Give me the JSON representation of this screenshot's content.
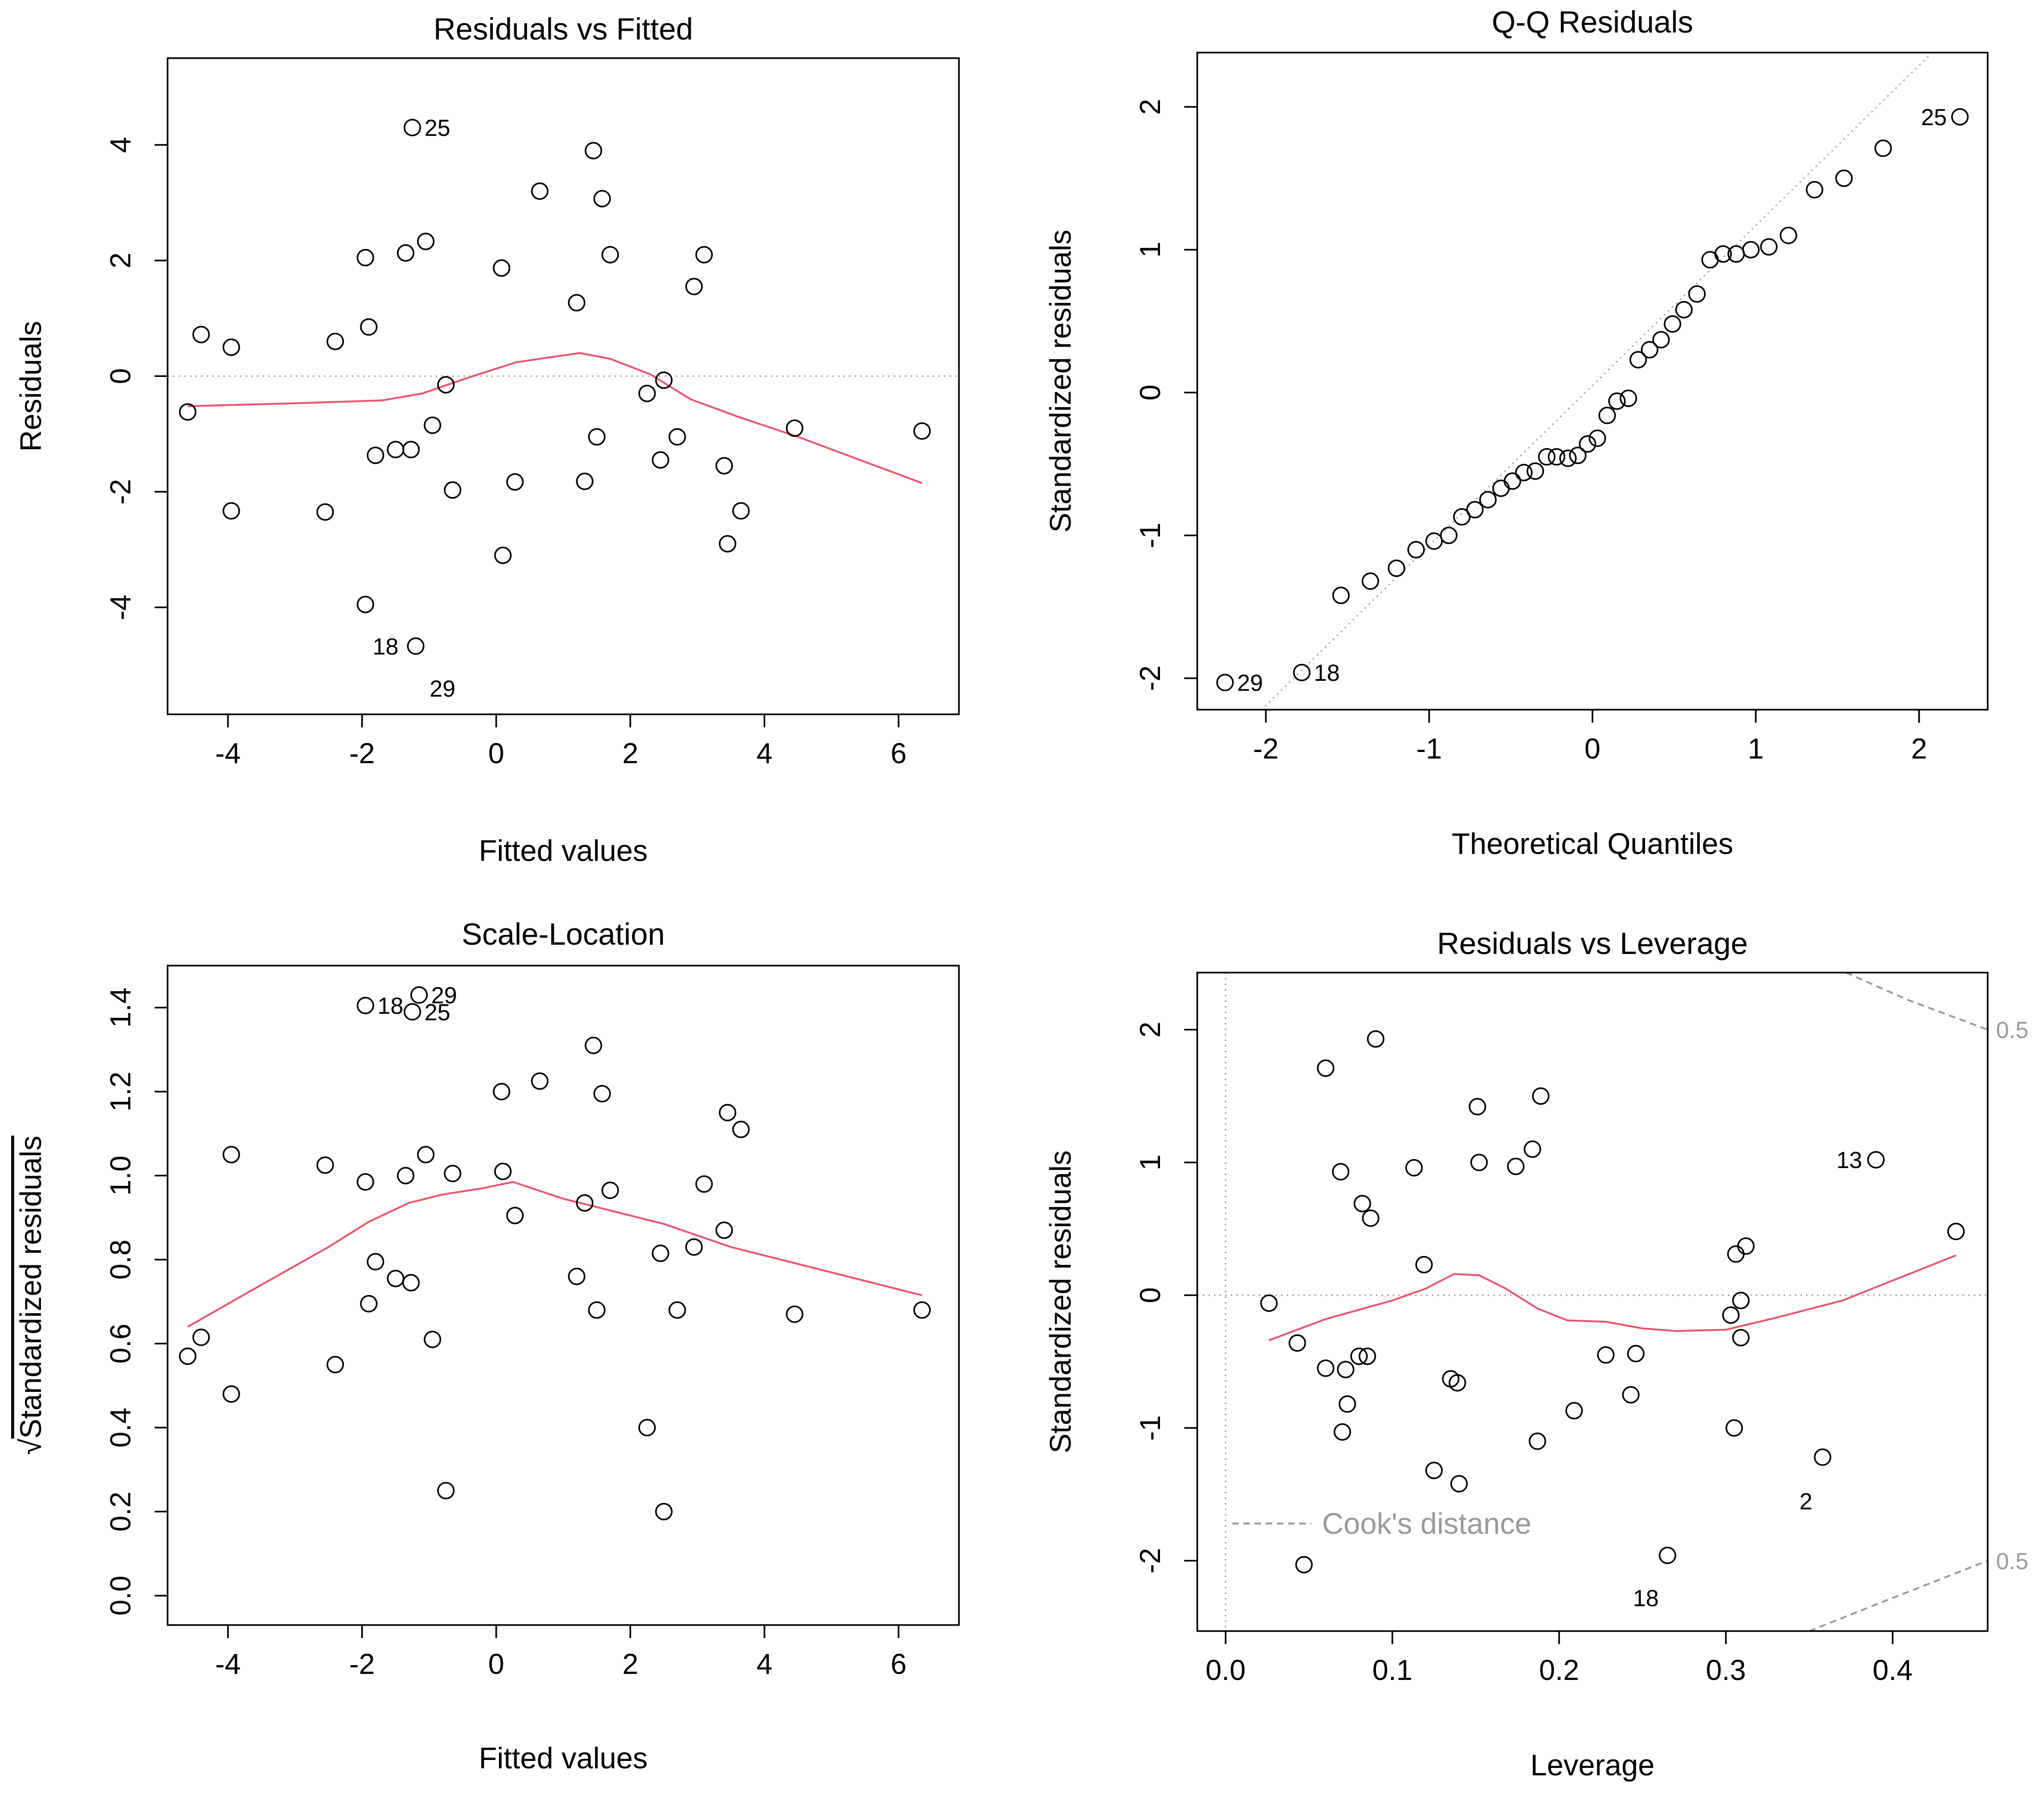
{
  "chart_data": [
    {
      "type": "scatter",
      "title": "Residuals vs Fitted",
      "xlabel": "Fitted values",
      "ylabel": "Residuals",
      "xlim": [
        -4.9,
        6.9
      ],
      "ylim": [
        -5.85,
        5.5
      ],
      "xticks": [
        -4,
        -2,
        0,
        2,
        4,
        6
      ],
      "yticks": [
        -4,
        -2,
        0,
        2,
        4
      ],
      "reference_line": {
        "y": 0,
        "style": "dotted"
      },
      "points": [
        {
          "x": -4.6,
          "y": -0.62
        },
        {
          "x": -4.4,
          "y": 0.72
        },
        {
          "x": -3.95,
          "y": 0.5
        },
        {
          "x": -3.95,
          "y": -2.33
        },
        {
          "x": -2.55,
          "y": -2.35
        },
        {
          "x": -2.4,
          "y": 0.6
        },
        {
          "x": -1.95,
          "y": -3.95
        },
        {
          "x": -1.95,
          "y": 2.05
        },
        {
          "x": -1.9,
          "y": 0.85
        },
        {
          "x": -1.8,
          "y": -1.37
        },
        {
          "x": -1.5,
          "y": -1.27
        },
        {
          "x": -1.35,
          "y": 2.13
        },
        {
          "x": -1.27,
          "y": -1.27
        },
        {
          "x": -1.25,
          "y": 4.3,
          "label": "25"
        },
        {
          "x": -1.2,
          "y": -4.67
        },
        {
          "x": -1.05,
          "y": 2.33
        },
        {
          "x": -0.95,
          "y": -0.85
        },
        {
          "x": -0.75,
          "y": -0.15
        },
        {
          "x": -0.65,
          "y": -1.97
        },
        {
          "x": 0.08,
          "y": 1.87
        },
        {
          "x": 0.1,
          "y": -3.1
        },
        {
          "x": 0.28,
          "y": -1.83
        },
        {
          "x": 0.65,
          "y": 3.2
        },
        {
          "x": 1.2,
          "y": 1.27
        },
        {
          "x": 1.32,
          "y": -1.82
        },
        {
          "x": 1.45,
          "y": 3.9
        },
        {
          "x": 1.5,
          "y": -1.05
        },
        {
          "x": 1.58,
          "y": 3.07
        },
        {
          "x": 1.7,
          "y": 2.1
        },
        {
          "x": 2.25,
          "y": -0.3
        },
        {
          "x": 2.45,
          "y": -1.45
        },
        {
          "x": 2.5,
          "y": -0.07
        },
        {
          "x": 2.7,
          "y": -1.05
        },
        {
          "x": 2.95,
          "y": 1.55
        },
        {
          "x": 3.1,
          "y": 2.1
        },
        {
          "x": 3.4,
          "y": -1.55
        },
        {
          "x": 3.45,
          "y": -2.9
        },
        {
          "x": 3.65,
          "y": -2.33
        },
        {
          "x": 4.45,
          "y": -0.9
        },
        {
          "x": 6.35,
          "y": -0.95
        }
      ],
      "extra_labels": [
        {
          "text": "18",
          "x": -1.65,
          "y": -4.67
        },
        {
          "text": "29",
          "x": -0.8,
          "y": -5.4
        }
      ],
      "smooth_line": [
        {
          "x": -4.6,
          "y": -0.52
        },
        {
          "x": -3,
          "y": -0.47
        },
        {
          "x": -1.7,
          "y": -0.42
        },
        {
          "x": -1.1,
          "y": -0.3
        },
        {
          "x": -0.4,
          "y": -0.02
        },
        {
          "x": 0.3,
          "y": 0.24
        },
        {
          "x": 1.25,
          "y": 0.4
        },
        {
          "x": 1.7,
          "y": 0.3
        },
        {
          "x": 2.3,
          "y": 0.03
        },
        {
          "x": 2.9,
          "y": -0.4
        },
        {
          "x": 3.6,
          "y": -0.7
        },
        {
          "x": 4.5,
          "y": -1.05
        },
        {
          "x": 6.35,
          "y": -1.85
        }
      ],
      "colors": {
        "points": "#000000",
        "smooth": "#e8566b",
        "reference": "#9a9a9a"
      }
    },
    {
      "type": "scatter",
      "title": "Q-Q Residuals",
      "xlabel": "Theoretical Quantiles",
      "ylabel": "Standardized residuals",
      "xlim": [
        -2.42,
        2.42
      ],
      "ylim": [
        -2.22,
        2.38
      ],
      "xticks": [
        -2,
        -1,
        0,
        1,
        2
      ],
      "yticks": [
        -2,
        -1,
        0,
        1,
        2
      ],
      "reference_line": {
        "type": "qqline",
        "intercept": 0.05,
        "slope": 1.12,
        "style": "dotted"
      },
      "points": [
        {
          "x": -2.25,
          "y": -2.03,
          "label": "29"
        },
        {
          "x": -1.78,
          "y": -1.96,
          "label": "18"
        },
        {
          "x": -1.54,
          "y": -1.42
        },
        {
          "x": -1.36,
          "y": -1.32
        },
        {
          "x": -1.2,
          "y": -1.23
        },
        {
          "x": -1.08,
          "y": -1.1
        },
        {
          "x": -0.97,
          "y": -1.04
        },
        {
          "x": -0.88,
          "y": -1.0
        },
        {
          "x": -0.8,
          "y": -0.87
        },
        {
          "x": -0.72,
          "y": -0.82
        },
        {
          "x": -0.64,
          "y": -0.75
        },
        {
          "x": -0.56,
          "y": -0.67
        },
        {
          "x": -0.49,
          "y": -0.62
        },
        {
          "x": -0.42,
          "y": -0.56
        },
        {
          "x": -0.35,
          "y": -0.55
        },
        {
          "x": -0.28,
          "y": -0.45
        },
        {
          "x": -0.22,
          "y": -0.45
        },
        {
          "x": -0.15,
          "y": -0.46
        },
        {
          "x": -0.09,
          "y": -0.44
        },
        {
          "x": -0.03,
          "y": -0.36
        },
        {
          "x": 0.03,
          "y": -0.32
        },
        {
          "x": 0.09,
          "y": -0.16
        },
        {
          "x": 0.15,
          "y": -0.06
        },
        {
          "x": 0.22,
          "y": -0.04
        },
        {
          "x": 0.28,
          "y": 0.23
        },
        {
          "x": 0.35,
          "y": 0.3
        },
        {
          "x": 0.42,
          "y": 0.37
        },
        {
          "x": 0.49,
          "y": 0.48
        },
        {
          "x": 0.56,
          "y": 0.58
        },
        {
          "x": 0.64,
          "y": 0.69
        },
        {
          "x": 0.72,
          "y": 0.93
        },
        {
          "x": 0.8,
          "y": 0.97
        },
        {
          "x": 0.88,
          "y": 0.97
        },
        {
          "x": 0.97,
          "y": 1.0
        },
        {
          "x": 1.08,
          "y": 1.02
        },
        {
          "x": 1.2,
          "y": 1.1
        },
        {
          "x": 1.36,
          "y": 1.42
        },
        {
          "x": 1.54,
          "y": 1.5
        },
        {
          "x": 1.78,
          "y": 1.71
        },
        {
          "x": 2.25,
          "y": 1.93,
          "label": "25"
        }
      ],
      "colors": {
        "points": "#000000",
        "reference": "#9a9a9a"
      }
    },
    {
      "type": "scatter",
      "title": "Scale-Location",
      "xlabel": "Fitted values",
      "ylabel": "Standardized residuals",
      "ylabel_prefix": "√",
      "xlim": [
        -4.9,
        6.9
      ],
      "ylim": [
        -0.07,
        1.5
      ],
      "xticks": [
        -4,
        -2,
        0,
        2,
        4,
        6
      ],
      "yticks": [
        "0.0",
        "0.2",
        "0.4",
        "0.6",
        "0.8",
        "1.0",
        "1.2",
        "1.4"
      ],
      "points": [
        {
          "x": -4.6,
          "y": 0.57
        },
        {
          "x": -4.4,
          "y": 0.615
        },
        {
          "x": -3.95,
          "y": 1.05
        },
        {
          "x": -3.95,
          "y": 0.48
        },
        {
          "x": -2.55,
          "y": 1.025
        },
        {
          "x": -2.4,
          "y": 0.55
        },
        {
          "x": -1.95,
          "y": 1.405,
          "label": "18"
        },
        {
          "x": -1.95,
          "y": 0.985
        },
        {
          "x": -1.9,
          "y": 0.695
        },
        {
          "x": -1.8,
          "y": 0.795
        },
        {
          "x": -1.5,
          "y": 0.755
        },
        {
          "x": -1.35,
          "y": 1.0
        },
        {
          "x": -1.27,
          "y": 0.745
        },
        {
          "x": -1.25,
          "y": 1.39,
          "label": "25"
        },
        {
          "x": -1.15,
          "y": 1.43,
          "label": "29"
        },
        {
          "x": -1.05,
          "y": 1.05
        },
        {
          "x": -0.95,
          "y": 0.61
        },
        {
          "x": -0.75,
          "y": 0.25
        },
        {
          "x": -0.65,
          "y": 1.005
        },
        {
          "x": 0.08,
          "y": 1.2
        },
        {
          "x": 0.1,
          "y": 1.01
        },
        {
          "x": 0.28,
          "y": 0.905
        },
        {
          "x": 0.65,
          "y": 1.225
        },
        {
          "x": 1.2,
          "y": 0.76
        },
        {
          "x": 1.32,
          "y": 0.935
        },
        {
          "x": 1.45,
          "y": 1.31
        },
        {
          "x": 1.5,
          "y": 0.68
        },
        {
          "x": 1.58,
          "y": 1.195
        },
        {
          "x": 1.7,
          "y": 0.965
        },
        {
          "x": 2.25,
          "y": 0.4
        },
        {
          "x": 2.45,
          "y": 0.815
        },
        {
          "x": 2.5,
          "y": 0.2
        },
        {
          "x": 2.7,
          "y": 0.68
        },
        {
          "x": 2.95,
          "y": 0.83
        },
        {
          "x": 3.1,
          "y": 0.98
        },
        {
          "x": 3.4,
          "y": 0.87
        },
        {
          "x": 3.45,
          "y": 1.15
        },
        {
          "x": 3.65,
          "y": 1.11
        },
        {
          "x": 4.45,
          "y": 0.67
        },
        {
          "x": 6.35,
          "y": 0.68
        }
      ],
      "smooth_line": [
        {
          "x": -4.6,
          "y": 0.64
        },
        {
          "x": -3.5,
          "y": 0.74
        },
        {
          "x": -2.5,
          "y": 0.83
        },
        {
          "x": -1.9,
          "y": 0.89
        },
        {
          "x": -1.3,
          "y": 0.935
        },
        {
          "x": -0.8,
          "y": 0.955
        },
        {
          "x": -0.2,
          "y": 0.97
        },
        {
          "x": 0.25,
          "y": 0.985
        },
        {
          "x": 1,
          "y": 0.945
        },
        {
          "x": 2.5,
          "y": 0.885
        },
        {
          "x": 3.5,
          "y": 0.83
        },
        {
          "x": 6.35,
          "y": 0.715
        }
      ],
      "colors": {
        "points": "#000000",
        "smooth": "#e8566b"
      }
    },
    {
      "type": "scatter",
      "title": "Residuals vs Leverage",
      "xlabel": "Leverage",
      "ylabel": "Standardized residuals",
      "xlim": [
        -0.017,
        0.457
      ],
      "ylim": [
        -2.53,
        2.43
      ],
      "xticks": [
        "0.0",
        "0.1",
        "0.2",
        "0.3",
        "0.4"
      ],
      "yticks": [
        -2,
        -1,
        0,
        1,
        2
      ],
      "reference_lines": [
        {
          "y": 0,
          "style": "dotted"
        },
        {
          "x": 0,
          "style": "dotted"
        }
      ],
      "points": [
        {
          "x": 0.026,
          "y": -0.06
        },
        {
          "x": 0.043,
          "y": -0.36
        },
        {
          "x": 0.047,
          "y": -2.03
        },
        {
          "x": 0.06,
          "y": 1.71
        },
        {
          "x": 0.06,
          "y": -0.55
        },
        {
          "x": 0.069,
          "y": 0.93
        },
        {
          "x": 0.07,
          "y": -1.03
        },
        {
          "x": 0.072,
          "y": -0.56
        },
        {
          "x": 0.073,
          "y": -0.82
        },
        {
          "x": 0.08,
          "y": -0.46
        },
        {
          "x": 0.082,
          "y": 0.69
        },
        {
          "x": 0.085,
          "y": -0.46
        },
        {
          "x": 0.087,
          "y": 0.58
        },
        {
          "x": 0.09,
          "y": 1.93
        },
        {
          "x": 0.113,
          "y": 0.96
        },
        {
          "x": 0.119,
          "y": 0.23
        },
        {
          "x": 0.125,
          "y": -1.32
        },
        {
          "x": 0.135,
          "y": -0.63
        },
        {
          "x": 0.139,
          "y": -0.66
        },
        {
          "x": 0.14,
          "y": -1.42
        },
        {
          "x": 0.151,
          "y": 1.42
        },
        {
          "x": 0.152,
          "y": 1.0
        },
        {
          "x": 0.174,
          "y": 0.97
        },
        {
          "x": 0.184,
          "y": 1.1
        },
        {
          "x": 0.187,
          "y": -1.1
        },
        {
          "x": 0.189,
          "y": 1.5
        },
        {
          "x": 0.209,
          "y": -0.87
        },
        {
          "x": 0.228,
          "y": -0.45
        },
        {
          "x": 0.243,
          "y": -0.75
        },
        {
          "x": 0.246,
          "y": -0.44
        },
        {
          "x": 0.265,
          "y": -1.96
        },
        {
          "x": 0.303,
          "y": -0.15
        },
        {
          "x": 0.305,
          "y": -1.0
        },
        {
          "x": 0.306,
          "y": 0.31
        },
        {
          "x": 0.309,
          "y": -0.04
        },
        {
          "x": 0.309,
          "y": -0.32
        },
        {
          "x": 0.312,
          "y": 0.37
        },
        {
          "x": 0.358,
          "y": -1.22
        },
        {
          "x": 0.39,
          "y": 1.02
        },
        {
          "x": 0.438,
          "y": 0.48
        }
      ],
      "extra_labels": [
        {
          "text": "13",
          "x": 0.374,
          "y": 1.02
        },
        {
          "text": "2",
          "x": 0.348,
          "y": -1.55
        },
        {
          "text": "18",
          "x": 0.252,
          "y": -2.28
        }
      ],
      "smooth_line": [
        {
          "x": 0.026,
          "y": -0.34
        },
        {
          "x": 0.06,
          "y": -0.18
        },
        {
          "x": 0.1,
          "y": -0.04
        },
        {
          "x": 0.12,
          "y": 0.05
        },
        {
          "x": 0.137,
          "y": 0.16
        },
        {
          "x": 0.152,
          "y": 0.15
        },
        {
          "x": 0.168,
          "y": 0.05
        },
        {
          "x": 0.187,
          "y": -0.1
        },
        {
          "x": 0.205,
          "y": -0.19
        },
        {
          "x": 0.228,
          "y": -0.2
        },
        {
          "x": 0.25,
          "y": -0.25
        },
        {
          "x": 0.27,
          "y": -0.27
        },
        {
          "x": 0.3,
          "y": -0.26
        },
        {
          "x": 0.33,
          "y": -0.17
        },
        {
          "x": 0.37,
          "y": -0.04
        },
        {
          "x": 0.438,
          "y": 0.3
        }
      ],
      "cook_distance": {
        "level_label": "0.5",
        "upper": [
          {
            "x": 0.372,
            "y": 2.43
          },
          {
            "x": 0.41,
            "y": 2.22
          },
          {
            "x": 0.457,
            "y": 2.0
          }
        ],
        "lower": [
          {
            "x": 0.35,
            "y": -2.53
          },
          {
            "x": 0.39,
            "y": -2.33
          },
          {
            "x": 0.457,
            "y": -2.0
          }
        ]
      },
      "legend": {
        "label": "Cook's distance",
        "position": "bottom-left"
      },
      "colors": {
        "points": "#000000",
        "smooth": "#e8566b",
        "reference": "#9a9a9a",
        "cook": "#9a9a9a"
      }
    }
  ]
}
